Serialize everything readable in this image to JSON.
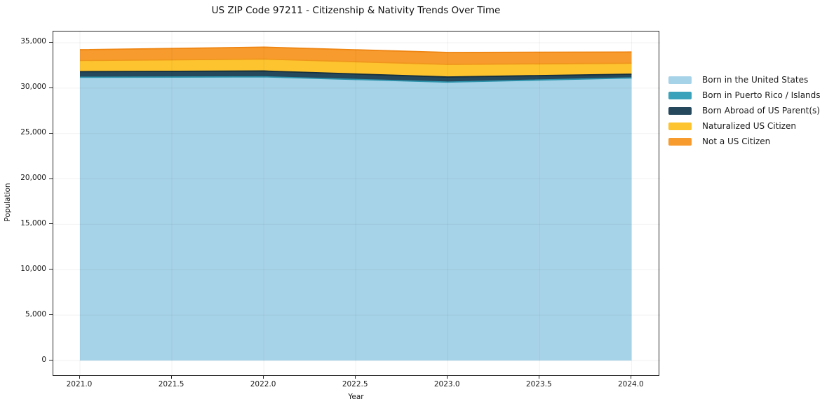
{
  "chart_data": {
    "type": "area",
    "stacked": true,
    "title": "US ZIP Code 97211 - Citizenship & Nativity Trends Over Time",
    "xlabel": "Year",
    "ylabel": "Population",
    "x": [
      2021,
      2022,
      2023,
      2024
    ],
    "series": [
      {
        "name": "Born in the United States",
        "values": [
          31100,
          31150,
          30570,
          31030
        ],
        "color": "#a7d3e8",
        "edge": "#a7d3e8"
      },
      {
        "name": "Born in Puerto Rico / Islands",
        "values": [
          90,
          90,
          90,
          90
        ],
        "color": "#3aa3bb",
        "edge": "#2c93ab"
      },
      {
        "name": "Born Abroad of US Parent(s)",
        "values": [
          620,
          640,
          560,
          410
        ],
        "color": "#25485c",
        "edge": "#152f3f"
      },
      {
        "name": "Naturalized US Citizen",
        "values": [
          1230,
          1315,
          1390,
          1210
        ],
        "color": "#fdc42f",
        "edge": "#f0961d"
      },
      {
        "name": "Not a US Citizen",
        "values": [
          1180,
          1310,
          1310,
          1230
        ],
        "color": "#f89b2e",
        "edge": "#ee8512"
      }
    ],
    "xlim": [
      2020.855,
      2024.155
    ],
    "ylim": [
      -1770,
      36230
    ],
    "xticks": [
      2021.0,
      2021.5,
      2022.0,
      2022.5,
      2023.0,
      2023.5,
      2024.0
    ],
    "xtick_labels": [
      "2021.0",
      "2021.5",
      "2022.0",
      "2022.5",
      "2023.0",
      "2023.5",
      "2024.0"
    ],
    "yticks": [
      0,
      5000,
      10000,
      15000,
      20000,
      25000,
      30000,
      35000
    ],
    "ytick_labels": [
      "0",
      "5,000",
      "10,000",
      "15,000",
      "20,000",
      "25,000",
      "30,000",
      "35,000"
    ],
    "grid": true,
    "grid_color": "rgba(0,0,0,0.055)",
    "spine_color": "#262626",
    "legend_position": "right"
  }
}
